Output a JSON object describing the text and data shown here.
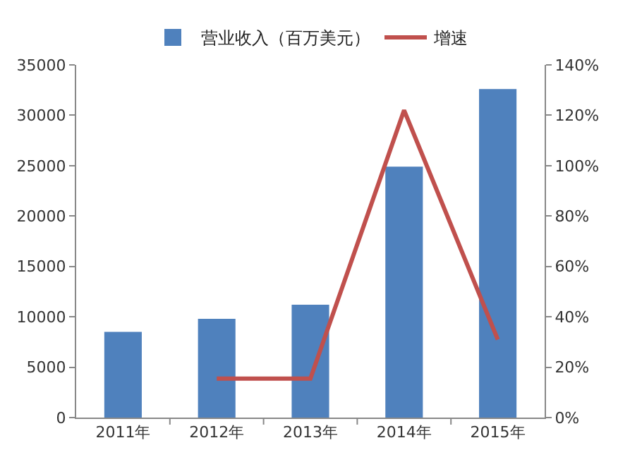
{
  "chart_data": {
    "type": "bar",
    "categories": [
      "2011年",
      "2012年",
      "2013年",
      "2014年",
      "2015年"
    ],
    "series": [
      {
        "name": "营业收入（百万美元）",
        "color": "#4f81bd",
        "values": [
          8500,
          9800,
          11200,
          24900,
          32600
        ]
      },
      {
        "name": "增速",
        "type": "line",
        "axis": "y2",
        "color": "#c0504d",
        "values": [
          null,
          15.5,
          15.5,
          122,
          31
        ]
      }
    ],
    "ylim": [
      0,
      35000
    ],
    "yticks": [
      0,
      5000,
      10000,
      15000,
      20000,
      25000,
      30000,
      35000
    ],
    "y2lim": [
      0,
      140
    ],
    "y2ticks": [
      {
        "value": 0,
        "label": "0%"
      },
      {
        "value": 20,
        "label": "20%"
      },
      {
        "value": 40,
        "label": "40%"
      },
      {
        "value": 60,
        "label": "60%"
      },
      {
        "value": 80,
        "label": "80%"
      },
      {
        "value": 100,
        "label": "100%"
      },
      {
        "value": 120,
        "label": "120%"
      },
      {
        "value": 140,
        "label": "140%"
      }
    ],
    "grid": false,
    "legend": "top",
    "marker": "none",
    "line_style": "solid"
  }
}
